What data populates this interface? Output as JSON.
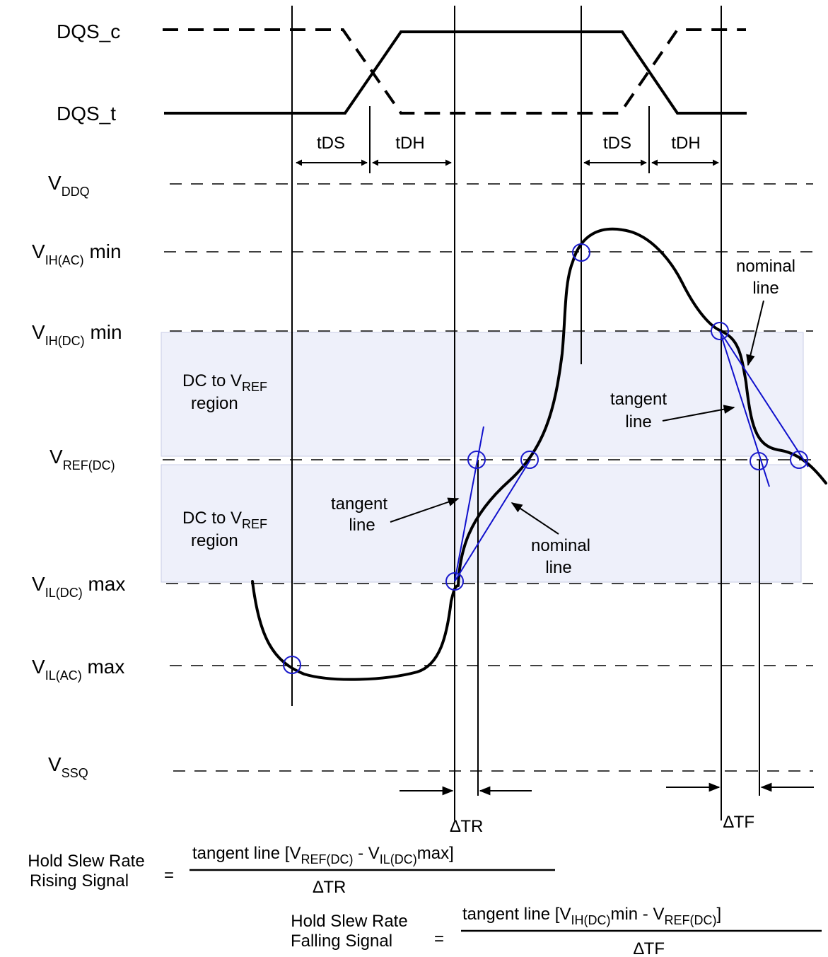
{
  "signals": {
    "dqs_c": "DQS_c",
    "dqs_t": "DQS_t"
  },
  "timing": {
    "tds_left": "tDS",
    "tdh_left": "tDH",
    "tds_right": "tDS",
    "tdh_right": "tDH"
  },
  "levels": {
    "vddq": {
      "main": "V",
      "sub": "DDQ",
      "suffix": ""
    },
    "vih_ac": {
      "main": "V",
      "sub": "IH(AC)",
      "suffix": " min"
    },
    "vih_dc": {
      "main": "V",
      "sub": "IH(DC)",
      "suffix": " min"
    },
    "vref_dc": {
      "main": "V",
      "sub": "REF(DC)",
      "suffix": ""
    },
    "vil_dc": {
      "main": "V",
      "sub": "IL(DC)",
      "suffix": " max"
    },
    "vil_ac": {
      "main": "V",
      "sub": "IL(AC)",
      "suffix": " max"
    },
    "vssq": {
      "main": "V",
      "sub": "SSQ",
      "suffix": ""
    }
  },
  "regions": {
    "upper": {
      "line1_pre": "DC to V",
      "line1_sub": "REF",
      "line2": "region"
    },
    "lower": {
      "line1_pre": "DC to V",
      "line1_sub": "REF",
      "line2": "region"
    }
  },
  "annotations": {
    "tangent_left": {
      "line1": "tangent",
      "line2": "line"
    },
    "nominal_left": {
      "line1": "nominal",
      "line2": "line"
    },
    "tangent_right": {
      "line1": "tangent",
      "line2": "line"
    },
    "nominal_right": {
      "line1": "nominal",
      "line2": "line"
    }
  },
  "deltas": {
    "tr": "∆TR",
    "tf": "∆TF"
  },
  "formulas": {
    "rising": {
      "label_line1": "Hold Slew Rate",
      "label_line2": "Rising Signal",
      "equals": "=",
      "num_pre": "tangent line [V",
      "num_sub1": "REF(DC)",
      "num_mid": " - V",
      "num_sub2": "IL(DC)",
      "num_post": "max]",
      "denominator": "∆TR"
    },
    "falling": {
      "label_line1": "Hold Slew Rate",
      "label_line2": "Falling Signal",
      "equals": "=",
      "num_pre": "tangent line [V",
      "num_sub1": "IH(DC)",
      "num_mid": "min - V",
      "num_sub2": "REF(DC)",
      "num_post": "]",
      "denominator": "∆TF"
    }
  },
  "colors": {
    "construction_lines": "#1010cc",
    "markers": "#1a1acc",
    "region_fill": "#eef0fa"
  }
}
